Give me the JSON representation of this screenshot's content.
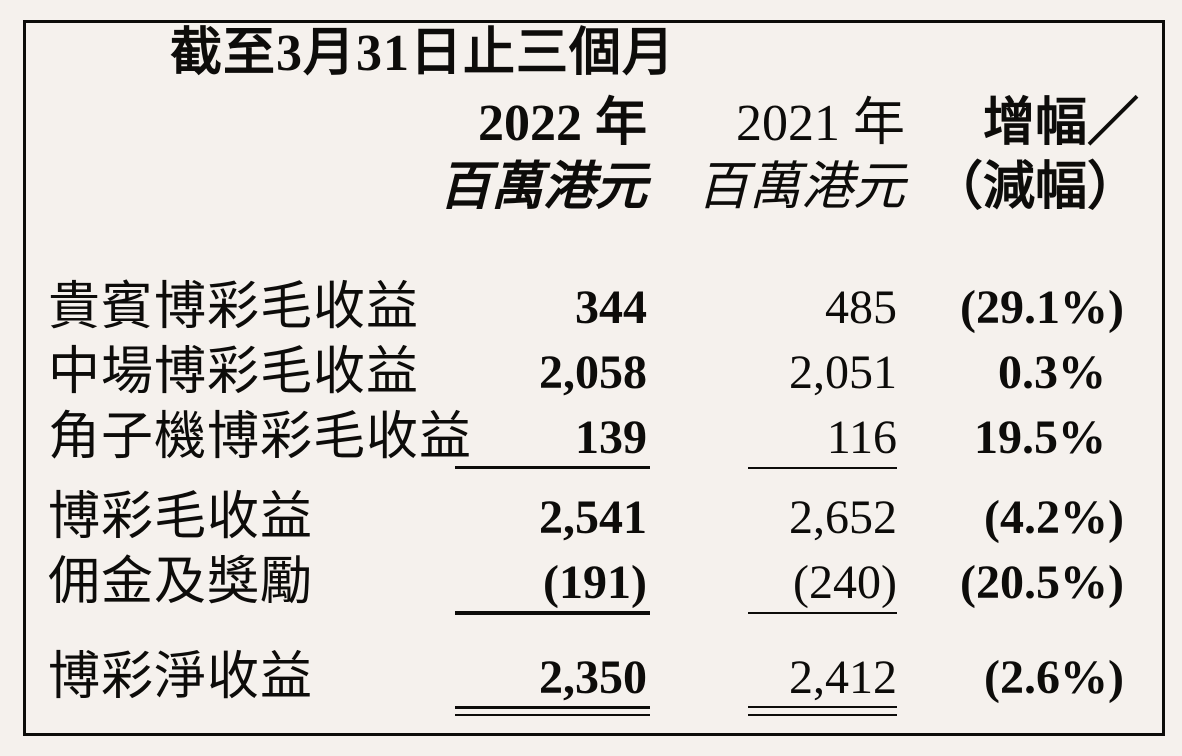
{
  "table": {
    "title": "截至3月31日止三個月",
    "columns": [
      {
        "year": "2022 年",
        "unit": "百萬港元"
      },
      {
        "year": "2021 年",
        "unit": "百萬港元"
      },
      {
        "year": "增幅／",
        "unit": "（減幅）"
      }
    ],
    "rows": [
      {
        "label": "貴賓博彩毛收益",
        "y2022": "344",
        "y2021": "485",
        "change": "(29.1%)"
      },
      {
        "label": "中場博彩毛收益",
        "y2022": "2,058",
        "y2021": "2,051",
        "change": "0.3%"
      },
      {
        "label": "角子機博彩毛收益",
        "y2022": "139",
        "y2021": "116",
        "change": "19.5%"
      },
      {
        "label": "博彩毛收益",
        "y2022": "2,541",
        "y2021": "2,652",
        "change": "(4.2%)"
      },
      {
        "label": "佣金及獎勵",
        "y2022": "(191)",
        "y2021": "(240)",
        "change": "(20.5%)"
      },
      {
        "label": "博彩淨收益",
        "y2022": "2,350",
        "y2021": "2,412",
        "change": "(2.6%)"
      }
    ],
    "colors": {
      "background": "#f5f1ed",
      "ink": "#0d0c0a"
    }
  }
}
